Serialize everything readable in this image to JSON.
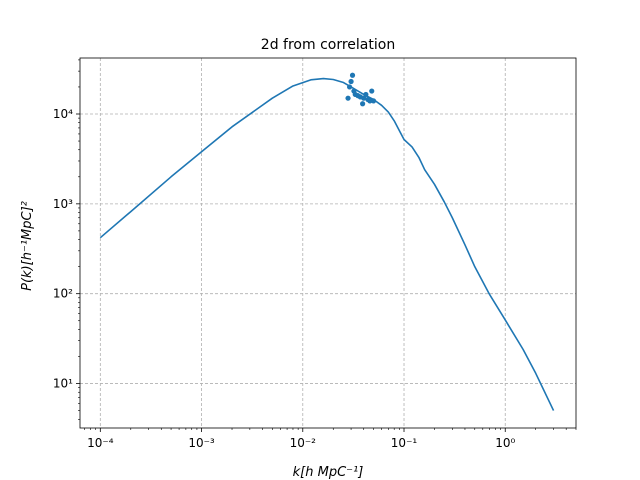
{
  "chart_data": {
    "type": "line",
    "title": "2d from correlation",
    "xlabel": "k[h MpC⁻¹]",
    "ylabel": "P(k)[h⁻¹MpC]²",
    "xscale": "log",
    "yscale": "log",
    "xlim": [
      6.3e-05,
      5.0
    ],
    "ylim": [
      3.2,
      42000
    ],
    "grid": true,
    "x_ticks": [
      {
        "value": 0.0001,
        "label": "10⁻⁴"
      },
      {
        "value": 0.001,
        "label": "10⁻³"
      },
      {
        "value": 0.01,
        "label": "10⁻²"
      },
      {
        "value": 0.1,
        "label": "10⁻¹"
      },
      {
        "value": 1,
        "label": "10⁰"
      }
    ],
    "y_ticks": [
      {
        "value": 10,
        "label": "10¹"
      },
      {
        "value": 100,
        "label": "10²"
      },
      {
        "value": 1000,
        "label": "10³"
      },
      {
        "value": 10000,
        "label": "10⁴"
      }
    ],
    "series": [
      {
        "kind": "line",
        "color": "#1f77b4",
        "x": [
          0.0001,
          0.0002,
          0.0005,
          0.001,
          0.002,
          0.005,
          0.008,
          0.012,
          0.016,
          0.02,
          0.025,
          0.03,
          0.04,
          0.05,
          0.06,
          0.07,
          0.08,
          0.1,
          0.12,
          0.14,
          0.16,
          0.2,
          0.25,
          0.3,
          0.4,
          0.5,
          0.7,
          1.0,
          1.5,
          2.0,
          3.0
        ],
        "y": [
          420,
          820,
          2000,
          3800,
          7200,
          15000,
          20500,
          24000,
          24800,
          24200,
          22500,
          20000,
          16500,
          14500,
          12500,
          10500,
          8400,
          5200,
          4300,
          3300,
          2400,
          1650,
          1050,
          700,
          350,
          200,
          98,
          51,
          24,
          13,
          5
        ]
      },
      {
        "kind": "scatter",
        "color": "#1f77b4",
        "x": [
          0.028,
          0.029,
          0.03,
          0.031,
          0.032,
          0.033,
          0.035,
          0.037,
          0.039,
          0.04,
          0.042,
          0.044,
          0.046,
          0.048,
          0.05
        ],
        "y": [
          15000,
          20000,
          23000,
          27000,
          18000,
          16500,
          16000,
          15500,
          13000,
          15000,
          16500,
          14500,
          14000,
          18000,
          14000
        ]
      }
    ]
  }
}
